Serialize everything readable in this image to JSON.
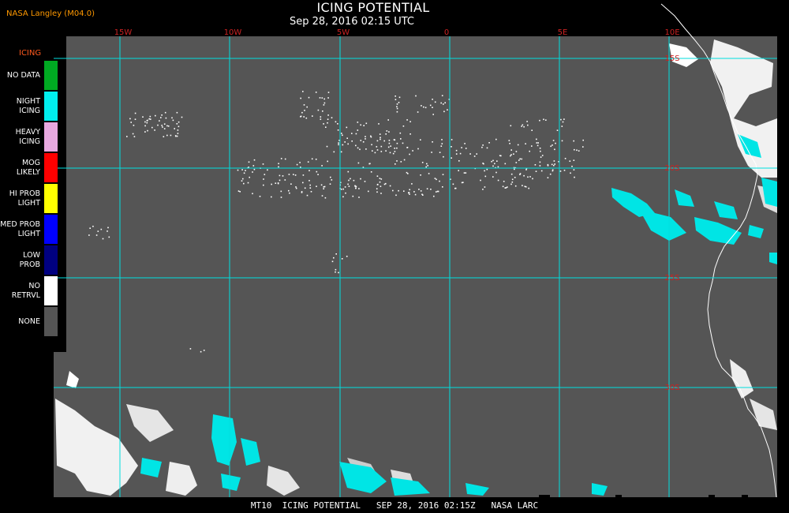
{
  "header": {
    "source": "NASA Langley (M04.0)",
    "title": "ICING POTENTIAL",
    "subtitle": "Sep 28, 2016 02:15 UTC"
  },
  "map": {
    "longitude_labels": [
      "15W",
      "10W",
      "5W",
      "0",
      "5E",
      "10E"
    ],
    "latitude_labels": [
      "15S",
      "20S",
      "25S",
      "30S"
    ],
    "colors": {
      "background": "#000000",
      "map_field": "#555555",
      "grid": "#00dede",
      "grid_labels": "#cc2222",
      "coastline": "#ffffff",
      "night_icing": "#00e5e5",
      "no_retrieval": "#ffffff"
    }
  },
  "legend": {
    "title": "ICING",
    "items": [
      {
        "label": [
          "NO DATA"
        ],
        "color": "#00aa22"
      },
      {
        "label": [
          "NIGHT",
          "ICING"
        ],
        "color": "#00eeee"
      },
      {
        "label": [
          "HEAVY",
          "ICING"
        ],
        "color": "#e8a8e0"
      },
      {
        "label": [
          "MOG",
          "LIKELY"
        ],
        "color": "#ff0000"
      },
      {
        "label": [
          "HI PROB",
          "LIGHT"
        ],
        "color": "#ffff00"
      },
      {
        "label": [
          "MED PROB",
          "LIGHT"
        ],
        "color": "#0000ff"
      },
      {
        "label": [
          "LOW",
          "PROB"
        ],
        "color": "#000080"
      },
      {
        "label": [
          "NO",
          "RETRVL"
        ],
        "color": "#ffffff"
      },
      {
        "label": [
          "NONE"
        ],
        "color": "#555555"
      }
    ]
  },
  "footer": {
    "text": "MT10  ICING POTENTIAL   SEP 28, 2016 02:15Z   NASA LARC"
  }
}
